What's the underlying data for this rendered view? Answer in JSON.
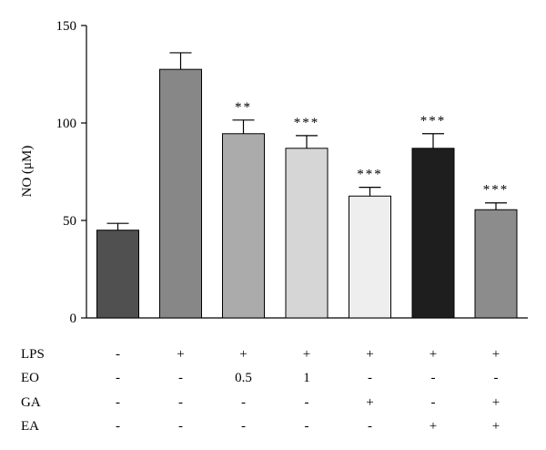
{
  "chart_data": {
    "type": "bar",
    "ylabel": "NO (μM)",
    "ylim": [
      0,
      150
    ],
    "yticks": [
      0,
      50,
      100,
      150
    ],
    "tick_labels": [
      "0",
      "50",
      "100",
      "150"
    ],
    "bars": [
      {
        "value": 45,
        "error": 3.5,
        "sig": "",
        "color": "#505050"
      },
      {
        "value": 127.5,
        "error": 8.5,
        "sig": "",
        "color": "#878787"
      },
      {
        "value": 94.5,
        "error": 7,
        "sig": "**",
        "color": "#ababab"
      },
      {
        "value": 87,
        "error": 6.5,
        "sig": "***",
        "color": "#d6d6d6"
      },
      {
        "value": 62.5,
        "error": 4.5,
        "sig": "***",
        "color": "#eeeeee"
      },
      {
        "value": 87,
        "error": 7.5,
        "sig": "***",
        "color": "#1e1e1e"
      },
      {
        "value": 55.5,
        "error": 3.5,
        "sig": "***",
        "color": "#8c8c8c"
      }
    ],
    "conditions": [
      {
        "label": "LPS",
        "values": [
          "-",
          "+",
          "+",
          "+",
          "+",
          "+",
          "+"
        ]
      },
      {
        "label": "EO",
        "values": [
          "-",
          "-",
          "0.5",
          "1",
          "-",
          "-",
          "-"
        ]
      },
      {
        "label": "GA",
        "values": [
          "-",
          "-",
          "-",
          "-",
          "+",
          "-",
          "+"
        ]
      },
      {
        "label": "EA",
        "values": [
          "-",
          "-",
          "-",
          "-",
          "-",
          "+",
          "+"
        ]
      }
    ]
  }
}
